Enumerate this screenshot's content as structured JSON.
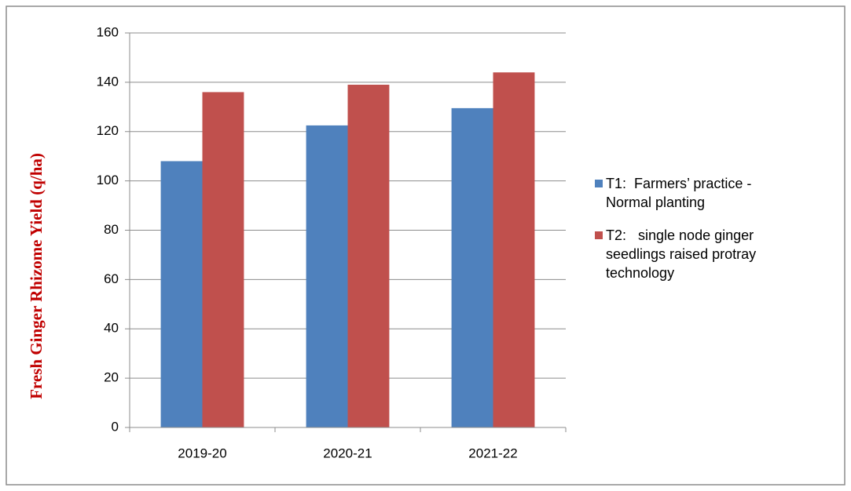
{
  "chart_data": {
    "type": "bar",
    "y_label": "Fresh Ginger Rhizome Yield (q/ha)",
    "categories": [
      "2019-20",
      "2020-21",
      "2021-22"
    ],
    "series": [
      {
        "name": "T1:  Farmers’ practice - Normal planting",
        "color": "#4f81bd",
        "values": [
          108,
          122.5,
          129.5
        ]
      },
      {
        "name": "T2:   single node ginger seedlings raised protray technology",
        "color": "#c0504d",
        "values": [
          136,
          139,
          144
        ]
      }
    ],
    "ylim": [
      0,
      160
    ],
    "yticks": [
      0,
      20,
      40,
      60,
      80,
      100,
      120,
      140,
      160
    ],
    "grid": true,
    "legend": "right"
  }
}
